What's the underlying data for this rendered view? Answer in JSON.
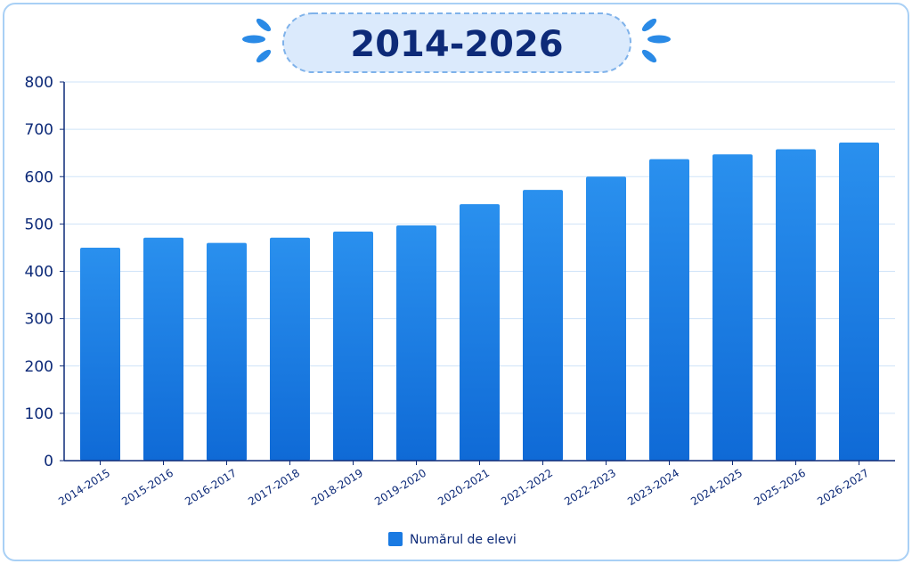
{
  "colors": {
    "bar_top": "#2a90ee",
    "bar_bottom": "#0f6ad6",
    "title_bg": "#dbeafc",
    "title_border": "#7fb2ea",
    "title_text": "#0d2a78",
    "grid": "#cfe3f8",
    "axis": "#0d2a78",
    "splash": "#2a8ae6"
  },
  "chart_data": {
    "type": "bar",
    "title": "2014-2026",
    "categories": [
      "2014-2015",
      "2015-2016",
      "2016-2017",
      "2017-2018",
      "2018-2019",
      "2019-2020",
      "2020-2021",
      "2021-2022",
      "2022-2023",
      "2023-2024",
      "2024-2025",
      "2025-2026",
      "2026-2027"
    ],
    "series": [
      {
        "name": "Numărul de elevi",
        "values": [
          450,
          471,
          460,
          471,
          484,
          497,
          542,
          572,
          600,
          637,
          647,
          658,
          672
        ]
      }
    ],
    "ylim": [
      0,
      800
    ],
    "yticks": [
      0,
      100,
      200,
      300,
      400,
      500,
      600,
      700,
      800
    ],
    "grid": true,
    "legend": "bottom-center"
  }
}
